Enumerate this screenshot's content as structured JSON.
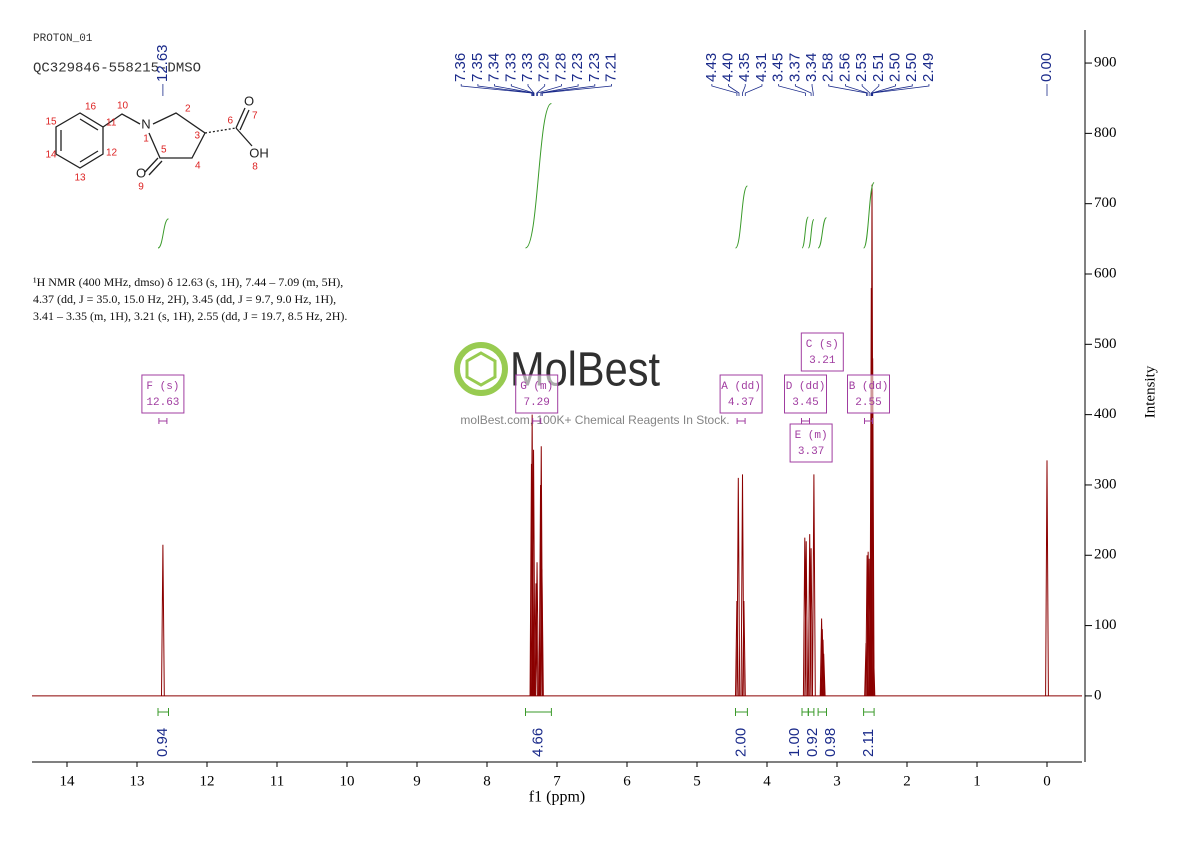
{
  "header": {
    "experiment": "PROTON_01",
    "sample": "QC329846-558215-DMSO"
  },
  "structure": {
    "atom_labels": [
      "16",
      "15",
      "14",
      "13",
      "12",
      "11",
      "10",
      "N",
      "1",
      "2",
      "3",
      "4",
      "5",
      "O",
      "9",
      "6",
      "O",
      "7",
      "OH",
      "8"
    ]
  },
  "description": [
    "¹H NMR (400 MHz, dmso) δ 12.63 (s, 1H), 7.44 – 7.09 (m, 5H),",
    "4.37 (dd, J = 35.0, 15.0 Hz, 2H), 3.45 (dd, J = 9.7, 9.0 Hz, 1H),",
    "3.41 – 3.35 (m, 1H), 3.21 (s, 1H), 2.55 (dd, J = 19.7, 8.5 Hz, 2H)."
  ],
  "watermark": {
    "brand": "MolBest",
    "tagline": "molBest.com, 100K+ Chemical Reagents In Stock."
  },
  "chart_data": {
    "type": "nmr",
    "xlabel": "f1 (ppm)",
    "ylabel": "Intensity",
    "xlim": [
      14.5,
      -0.5
    ],
    "xticks": [
      14,
      13,
      12,
      11,
      10,
      9,
      8,
      7,
      6,
      5,
      4,
      3,
      2,
      1,
      0
    ],
    "ylim": [
      -94,
      947
    ],
    "yticks": [
      0,
      100,
      200,
      300,
      400,
      500,
      600,
      700,
      800,
      900
    ],
    "color": "#8b0000",
    "spectrum": {
      "x": [
        12.63,
        7.365,
        7.355,
        7.345,
        7.335,
        7.3,
        7.285,
        7.235,
        7.225,
        7.215,
        4.43,
        4.41,
        4.35,
        4.33,
        3.46,
        3.44,
        3.39,
        3.37,
        3.33,
        3.22,
        3.21,
        3.2,
        3.19,
        2.585,
        2.57,
        2.555,
        2.54,
        2.52,
        2.51,
        2.5,
        2.49,
        2.48,
        0.0
      ],
      "values": [
        215,
        330,
        400,
        190,
        350,
        160,
        190,
        300,
        355,
        180,
        135,
        310,
        315,
        135,
        225,
        220,
        230,
        210,
        315,
        110,
        95,
        80,
        60,
        75,
        200,
        205,
        195,
        210,
        580,
        727,
        480,
        70,
        335
      ]
    },
    "peaks": {
      "values": [
        12.63,
        7.36,
        7.35,
        7.34,
        7.33,
        7.33,
        7.29,
        7.28,
        7.23,
        7.23,
        7.21,
        4.43,
        4.4,
        4.35,
        4.31,
        3.45,
        3.37,
        3.34,
        2.58,
        2.56,
        2.53,
        2.51,
        2.5,
        2.5,
        2.49,
        0
      ],
      "value_labels": [
        "12.63",
        "7.36",
        "7.35",
        "7.34",
        "7.33",
        "7.33",
        "7.29",
        "7.28",
        "7.23",
        "7.23",
        "7.21",
        "4.43",
        "4.40",
        "4.35",
        "4.31",
        "3.45",
        "3.37",
        "3.34",
        "2.58",
        "2.56",
        "2.53",
        "2.51",
        "2.50",
        "2.50",
        "2.49",
        "0.00"
      ]
    },
    "integrals": {
      "ranges": [
        [
          12.7,
          12.55
        ],
        [
          7.45,
          7.08
        ],
        [
          4.45,
          4.28
        ],
        [
          3.5,
          3.41
        ],
        [
          3.41,
          3.33
        ],
        [
          3.27,
          3.15
        ],
        [
          2.62,
          2.47
        ]
      ],
      "values": [
        0.94,
        4.66,
        2,
        1,
        0.92,
        0.98,
        2.11
      ],
      "value_labels": [
        "0.94",
        "4.66",
        "2.00",
        "1.00",
        "0.92",
        "0.98",
        "2.11"
      ]
    },
    "multiplets": [
      {
        "name": "F (s)",
        "shift": 12.63
      },
      {
        "name": "G (m)",
        "shift": 7.29
      },
      {
        "name": "A (dd)",
        "shift": 4.37
      },
      {
        "name": "D (dd)",
        "shift": 3.45
      },
      {
        "name": "C (s)",
        "shift": 3.21
      },
      {
        "name": "E (m)",
        "shift": 3.37
      },
      {
        "name": "B (dd)",
        "shift": 2.55
      }
    ]
  }
}
